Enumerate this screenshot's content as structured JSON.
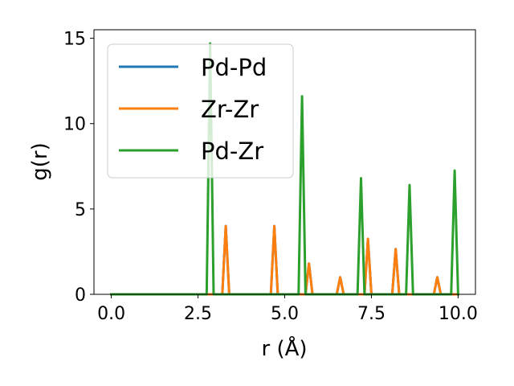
{
  "chart_data": {
    "type": "line",
    "title": "",
    "xlabel": "r (Å)",
    "ylabel": "g(r)",
    "xlim": [
      -0.5,
      10.5
    ],
    "ylim": [
      0,
      15.5
    ],
    "xticks": [
      0.0,
      2.5,
      5.0,
      7.5,
      10.0
    ],
    "xtick_labels": [
      "0.0",
      "2.5",
      "5.0",
      "7.5",
      "10.0"
    ],
    "yticks": [
      0,
      5,
      10,
      15
    ],
    "ytick_labels": [
      "0",
      "5",
      "10",
      "15"
    ],
    "grid": false,
    "legend_position": "top-left",
    "series": [
      {
        "name": "Pd-Pd",
        "color": "#1f77b4",
        "x": [
          0.0,
          3.2,
          3.3,
          3.4,
          4.6,
          4.7,
          4.8,
          5.6,
          5.7,
          5.8,
          6.5,
          6.6,
          6.7,
          7.3,
          7.4,
          7.5,
          8.1,
          8.2,
          8.3,
          9.3,
          9.4,
          9.5,
          10.0
        ],
        "y": [
          0,
          0,
          4.0,
          0,
          0,
          4.0,
          0,
          0,
          1.8,
          0,
          0,
          1.0,
          0,
          0,
          3.25,
          0,
          0,
          2.65,
          0,
          0,
          1.0,
          0,
          0
        ]
      },
      {
        "name": "Zr-Zr",
        "color": "#ff7f0e",
        "x": [
          0.0,
          3.2,
          3.3,
          3.4,
          4.6,
          4.7,
          4.8,
          5.6,
          5.7,
          5.8,
          6.5,
          6.6,
          6.7,
          7.3,
          7.4,
          7.5,
          8.1,
          8.2,
          8.3,
          9.3,
          9.4,
          9.5,
          10.0
        ],
        "y": [
          0,
          0,
          4.0,
          0,
          0,
          4.0,
          0,
          0,
          1.8,
          0,
          0,
          1.0,
          0,
          0,
          3.25,
          0,
          0,
          2.65,
          0,
          0,
          1.0,
          0,
          0
        ]
      },
      {
        "name": "Pd-Zr",
        "color": "#2ca02c",
        "x": [
          0.0,
          2.75,
          2.85,
          2.95,
          5.4,
          5.5,
          5.6,
          7.1,
          7.2,
          7.3,
          8.5,
          8.6,
          8.7,
          9.8,
          9.9,
          10.0
        ],
        "y": [
          0,
          0,
          14.7,
          0,
          0,
          11.6,
          0,
          0,
          6.8,
          0,
          0,
          6.4,
          0,
          0,
          7.25,
          0
        ]
      }
    ]
  }
}
